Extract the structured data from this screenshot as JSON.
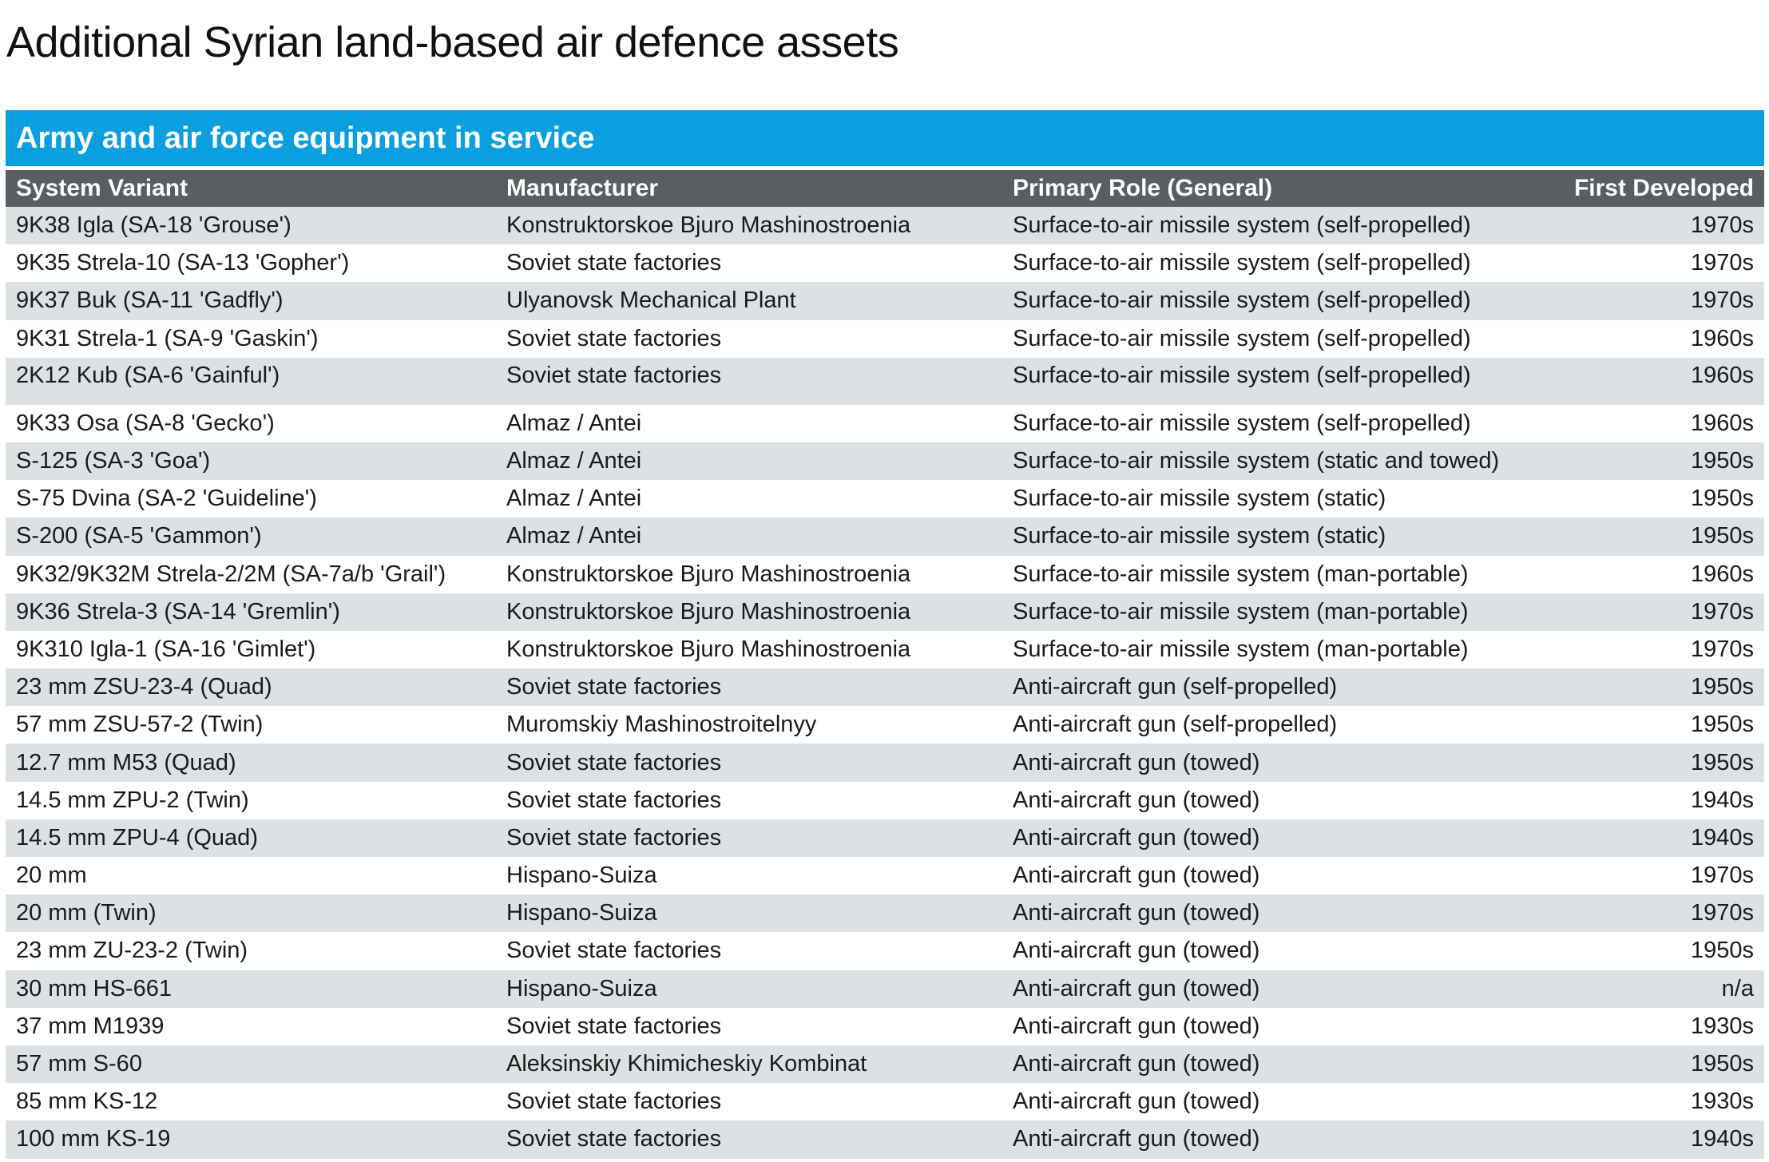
{
  "page": {
    "title": "Additional Syrian land-based air defence assets"
  },
  "table": {
    "banner": "Army and air force equipment in service",
    "headers": [
      "System Variant",
      "Manufacturer",
      "Primary Role (General)",
      "First Developed"
    ],
    "rows": [
      [
        "9K38 Igla (SA-18 'Grouse')",
        "Konstruktorskoe Bjuro Mashinostroenia",
        "Surface-to-air missile system (self-propelled)",
        "1970s"
      ],
      [
        "9K35 Strela-10 (SA-13 'Gopher')",
        "Soviet state factories",
        "Surface-to-air missile system (self-propelled)",
        "1970s"
      ],
      [
        "9K37 Buk (SA-11 'Gadfly')",
        "Ulyanovsk Mechanical Plant",
        "Surface-to-air missile system (self-propelled)",
        "1970s"
      ],
      [
        "9K31 Strela-1 (SA-9 'Gaskin')",
        "Soviet state factories",
        "Surface-to-air missile system (self-propelled)",
        "1960s"
      ],
      [
        "2K12 Kub (SA-6 'Gainful')",
        "Soviet state factories",
        "Surface-to-air missile system (self-propelled)",
        "1960s"
      ],
      [
        "9K33 Osa (SA-8 'Gecko')",
        "Almaz / Antei",
        "Surface-to-air missile system (self-propelled)",
        "1960s"
      ],
      [
        "S-125 (SA-3 'Goa')",
        "Almaz / Antei",
        "Surface-to-air missile system (static and towed)",
        "1950s"
      ],
      [
        "S-75 Dvina (SA-2 'Guideline')",
        "Almaz / Antei",
        "Surface-to-air missile system (static)",
        "1950s"
      ],
      [
        "S-200 (SA-5 'Gammon')",
        "Almaz / Antei",
        "Surface-to-air missile system (static)",
        "1950s"
      ],
      [
        "9K32/9K32M Strela-2/2M (SA-7a/b 'Grail')",
        "Konstruktorskoe Bjuro Mashinostroenia",
        "Surface-to-air missile system (man-portable)",
        "1960s"
      ],
      [
        "9K36 Strela-3 (SA-14 'Gremlin')",
        "Konstruktorskoe Bjuro Mashinostroenia",
        "Surface-to-air missile system (man-portable)",
        "1970s"
      ],
      [
        "9K310 Igla-1 (SA-16 'Gimlet')",
        "Konstruktorskoe Bjuro Mashinostroenia",
        "Surface-to-air missile system (man-portable)",
        "1970s"
      ],
      [
        "23 mm ZSU-23-4 (Quad)",
        "Soviet state factories",
        "Anti-aircraft gun (self-propelled)",
        "1950s"
      ],
      [
        "57 mm ZSU-57-2 (Twin)",
        "Muromskiy Mashinostroitelnyy",
        "Anti-aircraft gun (self-propelled)",
        "1950s"
      ],
      [
        "12.7 mm M53 (Quad)",
        "Soviet state factories",
        "Anti-aircraft gun (towed)",
        "1950s"
      ],
      [
        "14.5 mm ZPU-2 (Twin)",
        "Soviet state factories",
        "Anti-aircraft gun (towed)",
        "1940s"
      ],
      [
        "14.5 mm ZPU-4 (Quad)",
        "Soviet state factories",
        "Anti-aircraft gun (towed)",
        "1940s"
      ],
      [
        "20 mm",
        "Hispano-Suiza",
        "Anti-aircraft gun (towed)",
        "1970s"
      ],
      [
        "20 mm (Twin)",
        "Hispano-Suiza",
        "Anti-aircraft gun (towed)",
        "1970s"
      ],
      [
        "23 mm ZU-23-2 (Twin)",
        "Soviet state factories",
        "Anti-aircraft gun (towed)",
        "1950s"
      ],
      [
        "30 mm HS-661",
        "Hispano-Suiza",
        "Anti-aircraft gun (towed)",
        "n/a"
      ],
      [
        "37 mm M1939",
        "Soviet state factories",
        "Anti-aircraft gun (towed)",
        "1930s"
      ],
      [
        "57 mm S-60",
        "Aleksinskiy Khimicheskiy Kombinat",
        "Anti-aircraft gun (towed)",
        "1950s"
      ],
      [
        "85 mm KS-12",
        "Soviet state factories",
        "Anti-aircraft gun (towed)",
        "1930s"
      ],
      [
        "100 mm KS-19",
        "Soviet state factories",
        "Anti-aircraft gun (towed)",
        "1940s"
      ]
    ]
  }
}
